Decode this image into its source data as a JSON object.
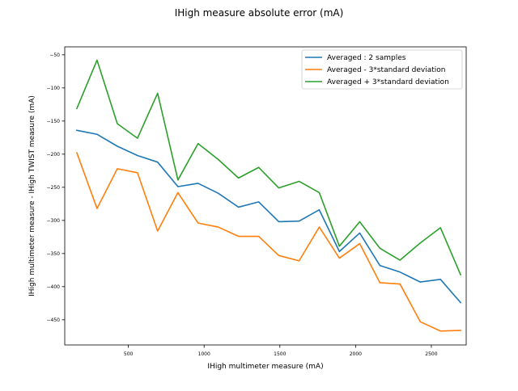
{
  "chart_data": {
    "type": "line",
    "title": "IHigh measure absolute error (mA)",
    "xlabel": "IHigh multimeter measure (mA)",
    "ylabel": "IHigh multimeter measure - IHigh TWIST measure (mA)",
    "xlim": [
      80,
      2730
    ],
    "ylim": [
      -488,
      -38
    ],
    "xticks": [
      500,
      1000,
      1500,
      2000,
      2500
    ],
    "yticks": [
      -50,
      -100,
      -150,
      -200,
      -250,
      -300,
      -350,
      -400,
      -450
    ],
    "grid": false,
    "legend": "top-right",
    "x": [
      160,
      293,
      427,
      560,
      693,
      827,
      960,
      1093,
      1227,
      1360,
      1493,
      1627,
      1760,
      1893,
      2027,
      2160,
      2293,
      2427,
      2560,
      2693
    ],
    "series": [
      {
        "name": "Averaged : 2 samples",
        "color": "#1f77b4",
        "values": [
          -164,
          -170,
          -188,
          -202,
          -212,
          -249,
          -244,
          -259,
          -280,
          -272,
          -302,
          -301,
          -284,
          -347,
          -319,
          -368,
          -378,
          -393,
          -389,
          -424
        ]
      },
      {
        "name": "Averaged - 3*standard deviation",
        "color": "#ff7f0e",
        "values": [
          -198,
          -282,
          -222,
          -228,
          -316,
          -258,
          -304,
          -310,
          -324,
          -324,
          -353,
          -361,
          -310,
          -357,
          -335,
          -394,
          -396,
          -453,
          -467,
          -466
        ]
      },
      {
        "name": "Averaged + 3*standard deviation",
        "color": "#2ca02c",
        "values": [
          -131,
          -58,
          -154,
          -176,
          -108,
          -239,
          -184,
          -208,
          -236,
          -220,
          -251,
          -241,
          -258,
          -339,
          -302,
          -342,
          -360,
          -334,
          -311,
          -382
        ]
      }
    ]
  }
}
